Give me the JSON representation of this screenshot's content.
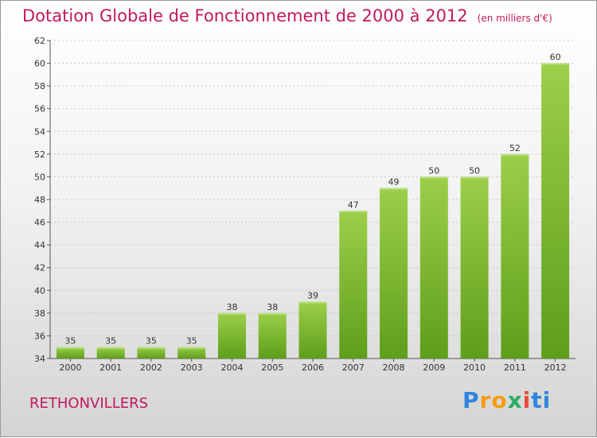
{
  "title": "Dotation Globale de Fonctionnement de 2000 à 2012",
  "unit": "(en milliers d'€)",
  "commune": "RETHONVILLERS",
  "logo": [
    "P",
    "r",
    "o",
    "x",
    "i",
    "t",
    "i"
  ],
  "colors": {
    "title": "#c2185b",
    "bar_top": "#9ccf4a",
    "bar_bottom": "#5e9e1a"
  },
  "chart_data": {
    "type": "bar",
    "categories": [
      "2000",
      "2001",
      "2002",
      "2003",
      "2004",
      "2005",
      "2006",
      "2007",
      "2008",
      "2009",
      "2010",
      "2011",
      "2012"
    ],
    "values": [
      35,
      35,
      35,
      35,
      38,
      38,
      39,
      47,
      49,
      50,
      50,
      52,
      60
    ],
    "ylim": [
      34,
      62
    ],
    "yticks": [
      34,
      36,
      38,
      40,
      42,
      44,
      46,
      48,
      50,
      52,
      54,
      56,
      58,
      60,
      62
    ],
    "grid": true
  }
}
